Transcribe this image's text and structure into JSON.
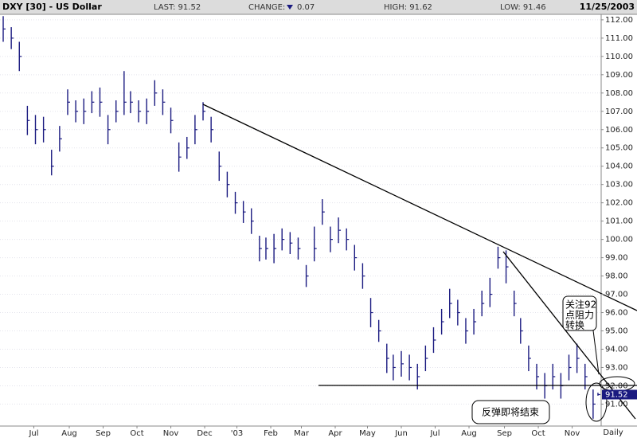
{
  "chart_data": {
    "type": "ohlc",
    "title": "DXY [30] - US Dollar",
    "header": {
      "last": "LAST: 91.52",
      "change_label": "CHANGE:",
      "change": "0.07",
      "high": "HIGH: 91.62",
      "low": "LOW: 91.46",
      "date": "11/25/2003"
    },
    "x_label": "Daily",
    "color": "#1a1a80",
    "grid": true,
    "xlim": [
      0,
      372
    ],
    "xticks": [
      {
        "value": 20,
        "label": "Jul"
      },
      {
        "value": 42,
        "label": "Aug"
      },
      {
        "value": 63,
        "label": "Sep"
      },
      {
        "value": 84,
        "label": "Oct"
      },
      {
        "value": 105,
        "label": "Nov"
      },
      {
        "value": 126,
        "label": "Dec"
      },
      {
        "value": 146,
        "label": "'03"
      },
      {
        "value": 167,
        "label": "Feb"
      },
      {
        "value": 186,
        "label": "Mar"
      },
      {
        "value": 207,
        "label": "Apr"
      },
      {
        "value": 227,
        "label": "May"
      },
      {
        "value": 248,
        "label": "Jun"
      },
      {
        "value": 269,
        "label": "Jul"
      },
      {
        "value": 290,
        "label": "Aug"
      },
      {
        "value": 312,
        "label": "Sep"
      },
      {
        "value": 333,
        "label": "Oct"
      },
      {
        "value": 354,
        "label": "Nov"
      }
    ],
    "ylim": [
      89.8,
      112.3
    ],
    "yticks": [
      {
        "value": 91,
        "label": "91.00"
      },
      {
        "value": 92,
        "label": "92.00"
      },
      {
        "value": 93,
        "label": "93.00"
      },
      {
        "value": 94,
        "label": "94.00"
      },
      {
        "value": 95,
        "label": "95.00"
      },
      {
        "value": 96,
        "label": "96.00"
      },
      {
        "value": 97,
        "label": "97.00"
      },
      {
        "value": 98,
        "label": "98.00"
      },
      {
        "value": 99,
        "label": "99.00"
      },
      {
        "value": 100,
        "label": "100.00"
      },
      {
        "value": 101,
        "label": "101.00"
      },
      {
        "value": 102,
        "label": "102.00"
      },
      {
        "value": 103,
        "label": "103.00"
      },
      {
        "value": 104,
        "label": "104.00"
      },
      {
        "value": 105,
        "label": "105.00"
      },
      {
        "value": 106,
        "label": "106.00"
      },
      {
        "value": 107,
        "label": "107.00"
      },
      {
        "value": 108,
        "label": "108.00"
      },
      {
        "value": 109,
        "label": "109.00"
      },
      {
        "value": 110,
        "label": "110.00"
      },
      {
        "value": 111,
        "label": "111.00"
      },
      {
        "value": 112,
        "label": "112.00"
      }
    ],
    "last_price": {
      "value": 91.52,
      "label": "91.52"
    },
    "x": [
      1,
      6,
      11,
      16,
      21,
      26,
      31,
      36,
      41,
      46,
      51,
      56,
      61,
      66,
      71,
      76,
      80,
      85,
      90,
      95,
      100,
      105,
      110,
      115,
      120,
      125,
      130,
      135,
      140,
      145,
      150,
      155,
      160,
      164,
      169,
      174,
      179,
      184,
      189,
      194,
      199,
      204,
      209,
      214,
      219,
      224,
      229,
      234,
      239,
      243,
      248,
      253,
      258,
      263,
      268,
      273,
      278,
      283,
      288,
      293,
      298,
      303,
      308,
      313,
      318,
      322,
      327,
      332,
      337,
      342,
      347,
      352,
      357,
      362,
      367,
      370
    ],
    "high": [
      112.2,
      111.6,
      110.8,
      107.3,
      106.8,
      106.7,
      104.9,
      106.2,
      108.2,
      107.6,
      107.7,
      108.1,
      108.3,
      106.8,
      107.6,
      109.2,
      108.1,
      107.6,
      107.7,
      108.7,
      108.2,
      107.2,
      105.3,
      105.6,
      106.8,
      107.5,
      106.7,
      104.8,
      103.7,
      102.6,
      102.1,
      101.7,
      100.2,
      100.1,
      100.3,
      100.6,
      100.4,
      100.1,
      98.6,
      100.7,
      102.2,
      100.7,
      101.2,
      100.6,
      99.7,
      98.7,
      96.8,
      95.6,
      94.3,
      93.7,
      93.9,
      93.7,
      93.2,
      94.2,
      95.2,
      96.2,
      97.3,
      96.7,
      95.7,
      96.2,
      97.2,
      97.9,
      99.6,
      99.4,
      97.2,
      95.7,
      94.2,
      93.2,
      92.7,
      93.2,
      92.7,
      93.7,
      94.3,
      93.2,
      91.8,
      91.62
    ],
    "low": [
      110.8,
      110.4,
      109.2,
      105.7,
      105.2,
      105.3,
      103.5,
      104.8,
      106.8,
      106.4,
      106.3,
      106.9,
      106.7,
      105.2,
      106.4,
      106.8,
      106.9,
      106.4,
      106.3,
      107.3,
      106.8,
      105.8,
      103.7,
      104.4,
      105.2,
      106.5,
      105.3,
      103.2,
      102.3,
      101.4,
      100.9,
      100.3,
      98.8,
      98.9,
      98.7,
      99.4,
      99.2,
      98.9,
      97.4,
      98.8,
      100.8,
      99.3,
      99.8,
      99.4,
      98.3,
      97.3,
      95.2,
      94.4,
      92.7,
      92.3,
      92.5,
      92.3,
      91.8,
      92.8,
      93.8,
      94.8,
      95.7,
      95.3,
      94.3,
      94.8,
      95.8,
      96.3,
      98.4,
      97.6,
      95.8,
      94.3,
      92.8,
      91.8,
      91.3,
      91.8,
      91.3,
      92.3,
      92.7,
      91.8,
      90.2,
      91.46
    ],
    "close": [
      111.5,
      111,
      110,
      106.5,
      106,
      106,
      104,
      105.5,
      107.5,
      107,
      107,
      107.5,
      107.5,
      106,
      107,
      107.5,
      107.5,
      107,
      107,
      108,
      107.5,
      106.5,
      104.5,
      105,
      106,
      107,
      106,
      104,
      103,
      102,
      101.5,
      101,
      99.5,
      99.5,
      99.5,
      100,
      99.8,
      99.5,
      98,
      99.5,
      101.5,
      100,
      100.5,
      100,
      99,
      98,
      96,
      95,
      93.5,
      93,
      93.2,
      93,
      92.5,
      93.5,
      94.5,
      95.5,
      96.5,
      96,
      95,
      95.5,
      96.5,
      97,
      99,
      98.5,
      96.5,
      95,
      93.5,
      92.5,
      92,
      92.5,
      92,
      93,
      93.5,
      92.5,
      91,
      91.52
    ],
    "annotations": {
      "resistance": [
        "关注92",
        "点阻力",
        "转换"
      ],
      "rebound": "反弹即将结束"
    }
  }
}
